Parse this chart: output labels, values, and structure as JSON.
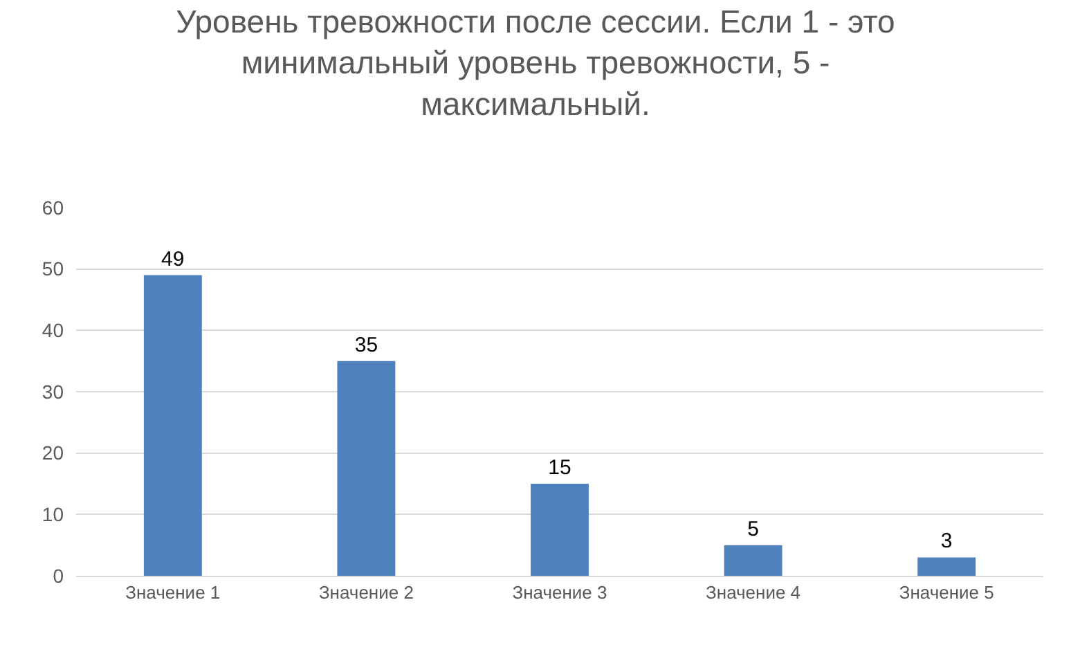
{
  "chart_data": {
    "type": "bar",
    "title": "Уровень тревожности после сессии. Если 1 - это минимальный уровень тревожности, 5 - максимальный.",
    "categories": [
      "Значение 1",
      "Значение 2",
      "Значение 3",
      "Значение 4",
      "Значение 5"
    ],
    "values": [
      49,
      35,
      15,
      5,
      3
    ],
    "color": "#4f81bd",
    "ylim": [
      0,
      60
    ],
    "yticks": [
      0,
      10,
      20,
      30,
      40,
      50,
      60
    ],
    "grid": "y",
    "data_labels": true
  }
}
